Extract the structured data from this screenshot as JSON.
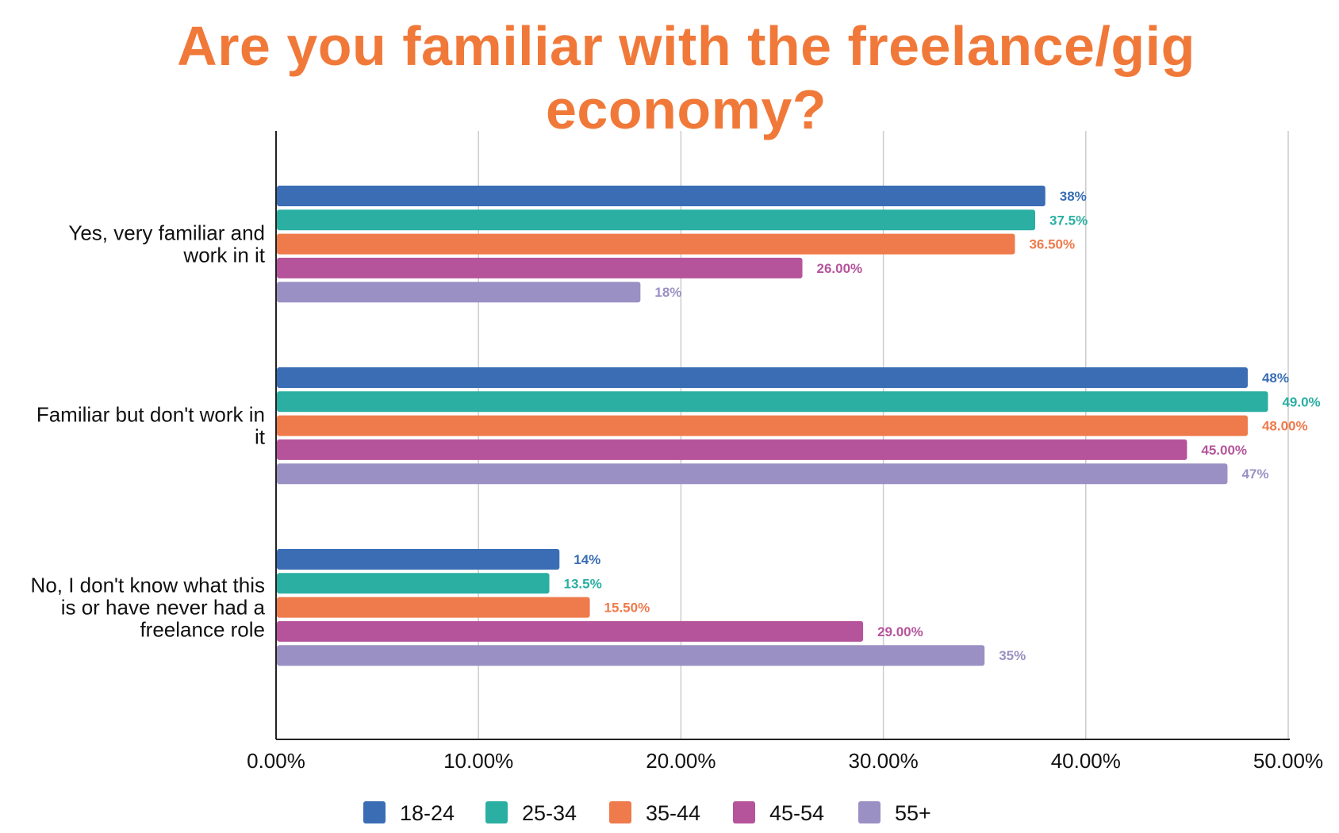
{
  "chart_data": {
    "type": "bar",
    "orientation": "horizontal",
    "title": "Are you familiar with the freelance/gig economy?",
    "categories": [
      [
        "Yes, very familiar and",
        "work in it"
      ],
      [
        "Familiar but don't work in",
        "it"
      ],
      [
        "No, I don't know what this",
        "is or have never had a",
        "freelance role"
      ]
    ],
    "series": [
      {
        "name": "18-24",
        "color": "#3a6db4",
        "values": [
          38,
          48,
          14
        ],
        "labels": [
          "38%",
          "48%",
          "14%"
        ]
      },
      {
        "name": "25-34",
        "color": "#2aafa2",
        "values": [
          37.5,
          49.0,
          13.5
        ],
        "labels": [
          "37.5%",
          "49.0%",
          "13.5%"
        ]
      },
      {
        "name": "35-44",
        "color": "#ef7a4c",
        "values": [
          36.5,
          48.0,
          15.5
        ],
        "labels": [
          "36.50%",
          "48.00%",
          "15.50%"
        ]
      },
      {
        "name": "45-54",
        "color": "#b5549b",
        "values": [
          26.0,
          45.0,
          29.0
        ],
        "labels": [
          "26.00%",
          "45.00%",
          "29.00%"
        ]
      },
      {
        "name": "55+",
        "color": "#9b90c3",
        "values": [
          18,
          47,
          35
        ],
        "labels": [
          "18%",
          "47%",
          "35%"
        ]
      }
    ],
    "xlim": [
      0,
      50
    ],
    "xticks": [
      "0.00%",
      "10.00%",
      "20.00%",
      "30.00%",
      "40.00%",
      "50.00%"
    ],
    "xlabel": "",
    "ylabel": "",
    "grid": true,
    "legend_position": "bottom"
  }
}
